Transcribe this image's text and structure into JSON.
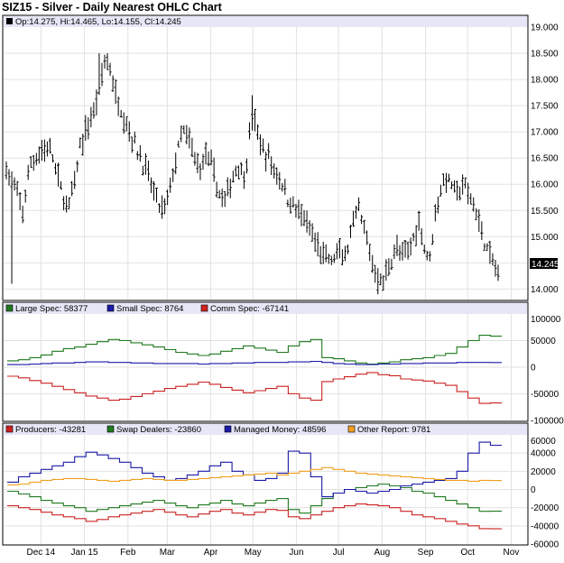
{
  "title": "SIZ15 - Silver - Daily Nearest OHLC Chart",
  "colors": {
    "legend_bg": "#e6e6f6",
    "grid": "#e2e2e2",
    "price_bar": "#000000",
    "large_spec": "#1f7a1f",
    "small_spec": "#1a1aa8",
    "comm_spec": "#cc2222",
    "producers": "#cc2222",
    "swap_dealers": "#1f7a1f",
    "managed_money": "#1a1aa8",
    "other_report": "#f0a020"
  },
  "chart_data": [
    {
      "id": "price",
      "type": "ohlc",
      "title": "SIZ15 - Silver - Daily Nearest OHLC Chart",
      "legend": "Op:14.275, Hi:14.465, Lo:14.155, Cl:14.245",
      "last_price": "14.245",
      "ylim": [
        13.8,
        19.0
      ],
      "y_ticks": [
        "19.000",
        "18.500",
        "18.000",
        "17.500",
        "17.000",
        "16.500",
        "16.000",
        "15.500",
        "15.000",
        "14.500",
        "14.000"
      ],
      "x_ticks": [
        "Dec 14",
        "Jan 15",
        "Feb",
        "Mar",
        "Apr",
        "May",
        "Jun",
        "Jul",
        "Aug",
        "Sep",
        "Oct",
        "Nov"
      ],
      "anchors": [
        [
          0,
          16.3
        ],
        [
          3,
          15.9
        ],
        [
          6,
          15.5
        ],
        [
          9,
          16.4
        ],
        [
          12,
          16.6
        ],
        [
          15,
          16.7
        ],
        [
          17,
          16.5
        ],
        [
          19,
          16.1
        ],
        [
          21,
          15.7
        ],
        [
          23,
          15.6
        ],
        [
          25,
          16.0
        ],
        [
          27,
          16.7
        ],
        [
          29,
          17.0
        ],
        [
          32,
          17.4
        ],
        [
          34,
          17.8
        ],
        [
          36,
          18.4
        ],
        [
          38,
          18.2
        ],
        [
          40,
          17.7
        ],
        [
          43,
          17.3
        ],
        [
          46,
          16.9
        ],
        [
          49,
          16.5
        ],
        [
          51,
          16.3
        ],
        [
          53,
          16.0
        ],
        [
          55,
          15.7
        ],
        [
          57,
          15.5
        ],
        [
          59,
          15.7
        ],
        [
          61,
          16.2
        ],
        [
          63,
          16.7
        ],
        [
          65,
          17.0
        ],
        [
          67,
          16.8
        ],
        [
          69,
          16.5
        ],
        [
          71,
          16.3
        ],
        [
          73,
          16.6
        ],
        [
          76,
          16.2
        ],
        [
          78,
          15.8
        ],
        [
          80,
          15.7
        ],
        [
          82,
          16.0
        ],
        [
          85,
          16.4
        ],
        [
          87,
          16.1
        ],
        [
          89,
          16.9
        ],
        [
          90,
          17.3
        ],
        [
          92,
          17.0
        ],
        [
          94,
          16.6
        ],
        [
          96,
          16.5
        ],
        [
          98,
          16.3
        ],
        [
          101,
          16.0
        ],
        [
          103,
          15.7
        ],
        [
          105,
          15.6
        ],
        [
          107,
          15.5
        ],
        [
          109,
          15.3
        ],
        [
          111,
          15.1
        ],
        [
          113,
          14.9
        ],
        [
          115,
          14.7
        ],
        [
          117,
          14.6
        ],
        [
          119,
          14.5
        ],
        [
          121,
          14.7
        ],
        [
          123,
          14.6
        ],
        [
          125,
          14.8
        ],
        [
          127,
          15.2
        ],
        [
          129,
          15.5
        ],
        [
          131,
          15.1
        ],
        [
          133,
          14.7
        ],
        [
          135,
          14.3
        ],
        [
          137,
          14.1
        ],
        [
          139,
          14.3
        ],
        [
          141,
          14.6
        ],
        [
          143,
          14.8
        ],
        [
          145,
          14.6
        ],
        [
          147,
          14.7
        ],
        [
          149,
          15.0
        ],
        [
          151,
          15.3
        ],
        [
          153,
          14.8
        ],
        [
          155,
          14.6
        ],
        [
          157,
          15.5
        ],
        [
          159,
          15.9
        ],
        [
          161,
          16.1
        ],
        [
          163,
          16.0
        ],
        [
          165,
          15.8
        ],
        [
          167,
          16.0
        ],
        [
          169,
          15.8
        ],
        [
          171,
          15.6
        ],
        [
          173,
          15.3
        ],
        [
          175,
          14.9
        ],
        [
          177,
          14.6
        ],
        [
          179,
          14.4
        ],
        [
          180,
          14.3
        ]
      ],
      "spikes": [
        [
          2,
          14.1,
          16.1
        ],
        [
          136,
          13.9,
          14.4
        ],
        [
          34,
          17.8,
          18.5
        ],
        [
          90,
          17.2,
          17.7
        ]
      ],
      "last_bar": {
        "open": 14.275,
        "high": 14.465,
        "low": 14.155,
        "close": 14.245
      }
    },
    {
      "id": "spec",
      "type": "step",
      "ylim": [
        -100000,
        100000
      ],
      "y_ticks": [
        "100000",
        "50000",
        "0",
        "-50000",
        "-100000"
      ],
      "tick_values": [
        100000,
        50000,
        0,
        -50000,
        -100000
      ],
      "series": [
        {
          "name": "Large Spec",
          "legend": "Large Spec: 58377",
          "color": "#1f7a1f",
          "values": [
            12000,
            14000,
            18000,
            23000,
            30000,
            35000,
            38000,
            43000,
            48000,
            52000,
            50000,
            46000,
            42000,
            38000,
            33000,
            28000,
            25000,
            22000,
            25000,
            30000,
            35000,
            40000,
            36000,
            32000,
            28000,
            40000,
            48000,
            52000,
            18000,
            16000,
            12000,
            8000,
            6000,
            8000,
            10000,
            14000,
            16000,
            18000,
            22000,
            26000,
            38000,
            50000,
            60000,
            58377
          ]
        },
        {
          "name": "Small Spec",
          "legend": "Small Spec: 8764",
          "color": "#1a1aa8",
          "values": [
            5000,
            5000,
            6000,
            7000,
            8000,
            8000,
            9000,
            10000,
            10000,
            9000,
            9000,
            8000,
            8000,
            7000,
            7000,
            7000,
            7000,
            6000,
            7000,
            7000,
            8000,
            8000,
            9000,
            9000,
            9000,
            10000,
            10000,
            11000,
            9000,
            7000,
            6000,
            5000,
            5000,
            6000,
            6000,
            7000,
            7000,
            8000,
            8000,
            8000,
            9000,
            9000,
            9000,
            8764
          ]
        },
        {
          "name": "Comm Spec",
          "legend": "Comm Spec: -67141",
          "color": "#cc2222",
          "values": [
            -17000,
            -20000,
            -25000,
            -30000,
            -36000,
            -42000,
            -48000,
            -54000,
            -58000,
            -62000,
            -60000,
            -55000,
            -50000,
            -45000,
            -40000,
            -36000,
            -32000,
            -28000,
            -32000,
            -38000,
            -43000,
            -48000,
            -44000,
            -40000,
            -36000,
            -50000,
            -58000,
            -62000,
            -27000,
            -22000,
            -18000,
            -13000,
            -10000,
            -14000,
            -16000,
            -22000,
            -24000,
            -26000,
            -30000,
            -34000,
            -46000,
            -58000,
            -68000,
            -67141
          ]
        }
      ]
    },
    {
      "id": "cot",
      "type": "step",
      "ylim": [
        -60000,
        60000
      ],
      "y_ticks": [
        "60000",
        "40000",
        "20000",
        "0",
        "-20000",
        "-40000",
        "-60000"
      ],
      "tick_values": [
        60000,
        40000,
        20000,
        0,
        -20000,
        -40000,
        -60000
      ],
      "series": [
        {
          "name": "Producers",
          "legend": "Producers: -43281",
          "color": "#cc2222",
          "values": [
            -18000,
            -20000,
            -22000,
            -25000,
            -28000,
            -30000,
            -32000,
            -35000,
            -33000,
            -30000,
            -28000,
            -26000,
            -24000,
            -22000,
            -25000,
            -28000,
            -30000,
            -27000,
            -24000,
            -22000,
            -26000,
            -28000,
            -25000,
            -22000,
            -23000,
            -30000,
            -32000,
            -28000,
            -24000,
            -20000,
            -18000,
            -16000,
            -17000,
            -18000,
            -20000,
            -24000,
            -28000,
            -30000,
            -32000,
            -35000,
            -38000,
            -40000,
            -43000,
            -43281
          ]
        },
        {
          "name": "Swap Dealers",
          "legend": "Swap Dealers: -23860",
          "color": "#1f7a1f",
          "values": [
            -2000,
            -5000,
            -8000,
            -12000,
            -15000,
            -18000,
            -20000,
            -24000,
            -22000,
            -20000,
            -18000,
            -16000,
            -14000,
            -12000,
            -15000,
            -18000,
            -20000,
            -17000,
            -15000,
            -12000,
            -16000,
            -18000,
            -15000,
            -12000,
            -10000,
            -22000,
            -26000,
            -18000,
            -10000,
            -4000,
            0,
            2000,
            4000,
            6000,
            4000,
            2000,
            -2000,
            -4000,
            -8000,
            -12000,
            -16000,
            -20000,
            -24000,
            -23860
          ]
        },
        {
          "name": "Managed Money",
          "legend": "Managed Money: 48596",
          "color": "#1a1aa8",
          "values": [
            8000,
            14000,
            18000,
            22000,
            26000,
            30000,
            36000,
            41000,
            38000,
            34000,
            30000,
            24000,
            18000,
            14000,
            10000,
            12000,
            16000,
            20000,
            26000,
            30000,
            20000,
            16000,
            10000,
            12000,
            18000,
            42000,
            40000,
            14000,
            -8000,
            -4000,
            0,
            -2000,
            -4000,
            -2000,
            0,
            4000,
            6000,
            8000,
            10000,
            12000,
            20000,
            40000,
            52000,
            48596
          ]
        },
        {
          "name": "Other Report",
          "legend": "Other Report: 9781",
          "color": "#f0a020",
          "values": [
            5000,
            6000,
            8000,
            10000,
            11000,
            12000,
            12000,
            11000,
            10000,
            9000,
            10000,
            11000,
            12000,
            11000,
            10000,
            10000,
            11000,
            12000,
            13000,
            14000,
            15000,
            16000,
            17000,
            18000,
            16000,
            18000,
            20000,
            22000,
            24000,
            22000,
            20000,
            18000,
            17000,
            16000,
            15000,
            14000,
            13000,
            12000,
            11000,
            10000,
            10000,
            9000,
            10000,
            9781
          ]
        }
      ]
    }
  ]
}
